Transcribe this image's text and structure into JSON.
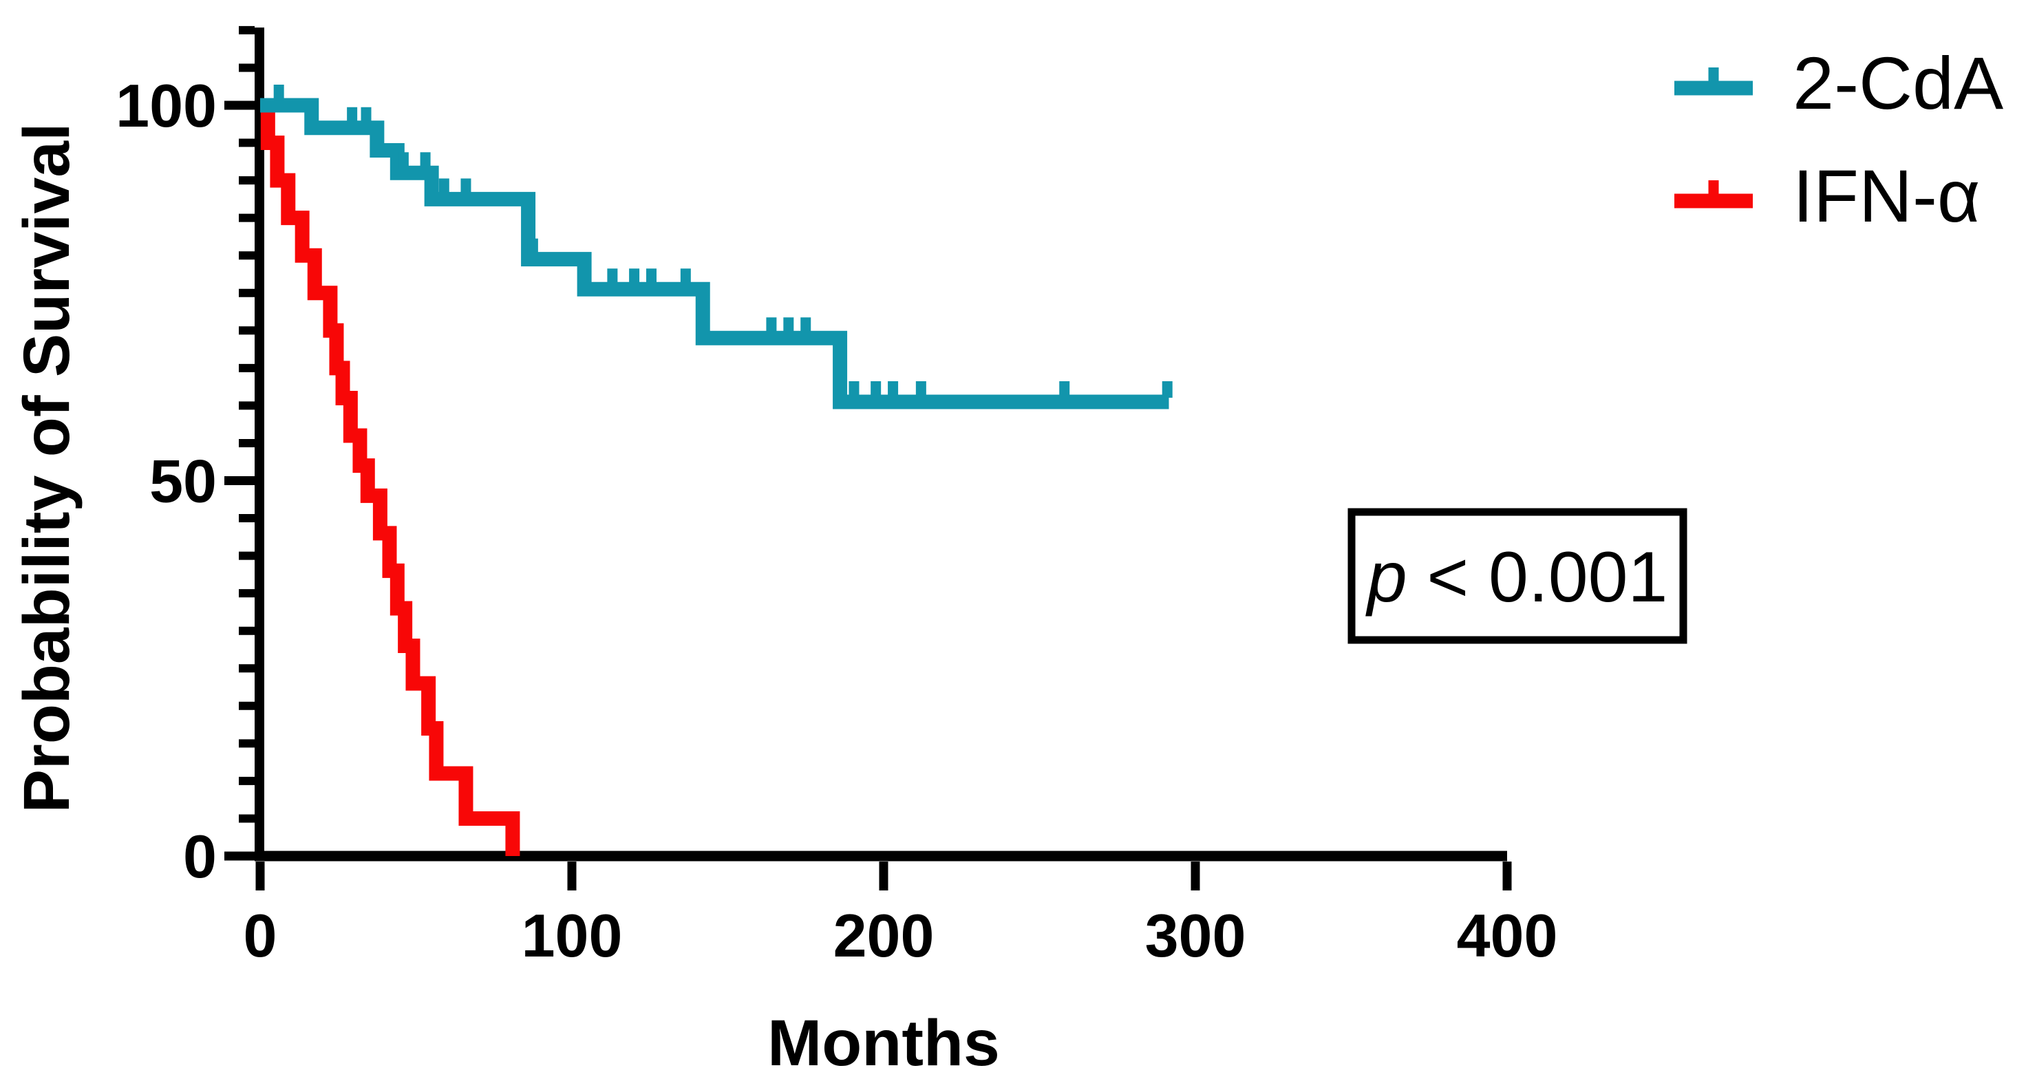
{
  "chart_data": {
    "type": "line",
    "subtype": "kaplan-meier-step-curves",
    "title": "",
    "xlabel": "Months",
    "ylabel": "Probability of Survival",
    "xlim": [
      0,
      400
    ],
    "ylim": [
      0,
      110
    ],
    "x_ticks": [
      0,
      100,
      200,
      300,
      400
    ],
    "y_ticks": [
      0,
      50,
      100
    ],
    "y_minor_tick_step": 5,
    "grid": "off",
    "legend_position": "top-right",
    "annotation": "p < 0.001",
    "series": [
      {
        "name": "IFN-α",
        "color": "#f80707",
        "start_value": 100,
        "steps": [
          [
            2.5,
            95
          ],
          [
            5.5,
            90
          ],
          [
            9,
            85
          ],
          [
            13.5,
            80
          ],
          [
            17.5,
            75
          ],
          [
            22.5,
            70
          ],
          [
            24.5,
            65
          ],
          [
            26.5,
            61
          ],
          [
            29,
            56
          ],
          [
            32,
            52
          ],
          [
            34.5,
            48
          ],
          [
            38.5,
            43
          ],
          [
            41.5,
            38
          ],
          [
            44,
            33
          ],
          [
            46.5,
            28
          ],
          [
            49,
            23
          ],
          [
            54,
            17
          ],
          [
            56.5,
            11
          ],
          [
            66,
            5
          ],
          [
            81,
            0
          ]
        ],
        "end_time": 81,
        "censor_times": []
      },
      {
        "name": "2-CdA",
        "color": "#1295ac",
        "start_value": 100,
        "steps": [
          [
            16.5,
            97
          ],
          [
            37.5,
            94
          ],
          [
            44,
            91
          ],
          [
            55,
            87.5
          ],
          [
            86,
            79.5
          ],
          [
            104,
            75.5
          ],
          [
            142,
            69
          ],
          [
            186,
            60.5
          ]
        ],
        "end_time": 291.5,
        "censor_times": [
          6,
          29.5,
          34,
          46,
          53,
          59,
          66,
          87.5,
          113,
          120,
          125.5,
          136.5,
          164,
          169.5,
          175,
          190.5,
          197.5,
          203,
          212,
          258,
          291
        ]
      }
    ]
  },
  "axes": {
    "x": {
      "title": "Months",
      "tick_labels": [
        "0",
        "100",
        "200",
        "300",
        "400"
      ]
    },
    "y": {
      "title": "Probability of Survival",
      "tick_labels": [
        "0",
        "50",
        "100"
      ]
    }
  },
  "legend": {
    "items": [
      {
        "label": "2-CdA",
        "color": "#1295ac"
      },
      {
        "label": "IFN-α",
        "color": "#f80707"
      }
    ]
  },
  "annotation": {
    "p_symbol": "p",
    "rest": " < 0.001"
  },
  "colors": {
    "axis": "#000000",
    "background": "#ffffff",
    "teal": "#1295ac",
    "red": "#f80707"
  }
}
